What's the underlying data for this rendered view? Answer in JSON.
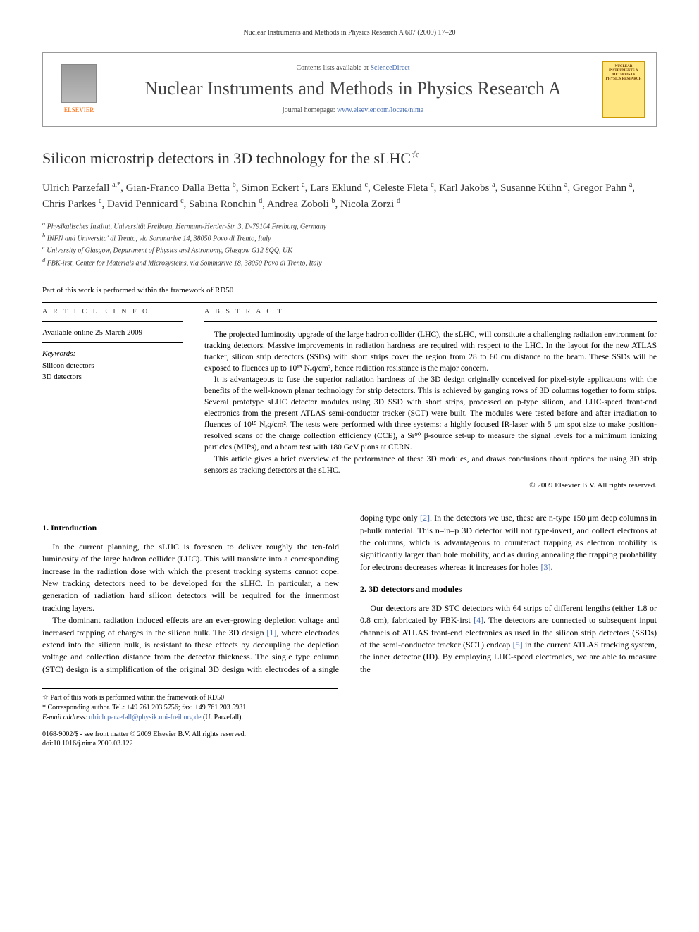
{
  "running_head": "Nuclear Instruments and Methods in Physics Research A 607 (2009) 17–20",
  "journal_box": {
    "publisher": "ELSEVIER",
    "contents_prefix": "Contents lists available at ",
    "contents_link": "ScienceDirect",
    "journal_title": "Nuclear Instruments and Methods in Physics Research A",
    "homepage_prefix": "journal homepage: ",
    "homepage_url": "www.elsevier.com/locate/nima",
    "cover_text": "NUCLEAR INSTRUMENTS & METHODS IN PHYSICS RESEARCH"
  },
  "article": {
    "title": "Silicon microstrip detectors in 3D technology for the sLHC",
    "star": "☆",
    "authors_html": "Ulrich Parzefall <sup>a,*</sup>, Gian-Franco Dalla Betta <sup>b</sup>, Simon Eckert <sup>a</sup>, Lars Eklund <sup>c</sup>, Celeste Fleta <sup>c</sup>, Karl Jakobs <sup>a</sup>, Susanne Kühn <sup>a</sup>, Gregor Pahn <sup>a</sup>, Chris Parkes <sup>c</sup>, David Pennicard <sup>c</sup>, Sabina Ronchin <sup>d</sup>, Andrea Zoboli <sup>b</sup>, Nicola Zorzi <sup>d</sup>",
    "affiliations": {
      "a": "Physikalisches Institut, Universität Freiburg, Hermann-Herder-Str. 3, D-79104 Freiburg, Germany",
      "b": "INFN and Universita' di Trento, via Sommarive 14, 38050 Povo di Trento, Italy",
      "c": "University of Glasgow, Department of Physics and Astronomy, Glasgow G12 8QQ, UK",
      "d": "FBK-irst, Center for Materials and Microsystems, via Sommarive 18, 38050 Povo di Trento, Italy"
    },
    "rd50": "Part of this work is performed within the framework of RD50"
  },
  "info": {
    "heading": "A R T I C L E  I N F O",
    "online": "Available online 25 March 2009",
    "keywords_label": "Keywords:",
    "keywords": [
      "Silicon detectors",
      "3D detectors"
    ]
  },
  "abstract": {
    "heading": "A B S T R A C T",
    "p1": "The projected luminosity upgrade of the large hadron collider (LHC), the sLHC, will constitute a challenging radiation environment for tracking detectors. Massive improvements in radiation hardness are required with respect to the LHC. In the layout for the new ATLAS tracker, silicon strip detectors (SSDs) with short strips cover the region from 28 to 60 cm distance to the beam. These SSDs will be exposed to fluences up to 10¹⁵ Nₑq/cm², hence radiation resistance is the major concern.",
    "p2": "It is advantageous to fuse the superior radiation hardness of the 3D design originally conceived for pixel-style applications with the benefits of the well-known planar technology for strip detectors. This is achieved by ganging rows of 3D columns together to form strips. Several prototype sLHC detector modules using 3D SSD with short strips, processed on p-type silicon, and LHC-speed front-end electronics from the present ATLAS semi-conductor tracker (SCT) were built. The modules were tested before and after irradiation to fluences of 10¹⁵ Nₑq/cm². The tests were performed with three systems: a highly focused IR-laser with 5 μm spot size to make position-resolved scans of the charge collection efficiency (CCE), a Sr⁹⁰ β-source set-up to measure the signal levels for a minimum ionizing particles (MIPs), and a beam test with 180 GeV pions at CERN.",
    "p3": "This article gives a brief overview of the performance of these 3D modules, and draws conclusions about options for using 3D strip sensors as tracking detectors at the sLHC.",
    "copyright": "© 2009 Elsevier B.V. All rights reserved."
  },
  "sections": {
    "s1": {
      "heading": "1. Introduction",
      "p1": "In the current planning, the sLHC is foreseen to deliver roughly the ten-fold luminosity of the large hadron collider (LHC). This will translate into a corresponding increase in the radiation dose with which the present tracking systems cannot cope. New tracking detectors need to be developed for the sLHC. In particular, a new generation of radiation hard silicon detectors will be required for the innermost tracking layers.",
      "p2a": "The dominant radiation induced effects are an ever-growing depletion voltage and increased trapping of charges in the silicon bulk. The 3D design ",
      "p2_ref1": "[1]",
      "p2b": ", where electrodes extend into the silicon bulk, is resistant to these effects by decoupling the depletion voltage and collection distance from the detector thickness. The single type column (STC) design is a simplification of the original 3D design with electrodes of a single doping type only ",
      "p2_ref2": "[2]",
      "p2c": ". In the detectors we use, these are n-type 150 μm deep columns in p-bulk material. This n–in–p 3D detector will not type-invert, and collect electrons at the columns, which is advantageous to counteract trapping as electron mobility is significantly larger than hole mobility, and as during annealing the trapping probability for electrons decreases whereas it increases for holes ",
      "p2_ref3": "[3]",
      "p2d": "."
    },
    "s2": {
      "heading": "2. 3D detectors and modules",
      "p1a": "Our detectors are 3D STC detectors with 64 strips of different lengths (either 1.8 or 0.8 cm), fabricated by FBK-irst ",
      "p1_ref4": "[4]",
      "p1b": ". The detectors are connected to subsequent input channels of ATLAS front-end electronics as used in the silicon strip detectors (SSDs) of the semi-conductor tracker (SCT) endcap ",
      "p1_ref5": "[5]",
      "p1c": " in the current ATLAS tracking system, the inner detector (ID). By employing LHC-speed electronics, we are able to measure the"
    }
  },
  "footnotes": {
    "star": "☆ Part of this work is performed within the framework of RD50",
    "corr_label": "* Corresponding author. Tel.: +49 761 203 5756; fax: +49 761 203 5931.",
    "email_label": "E-mail address: ",
    "email": "ulrich.parzefall@physik.uni-freiburg.de",
    "email_suffix": " (U. Parzefall)."
  },
  "doi": {
    "line1": "0168-9002/$ - see front matter © 2009 Elsevier B.V. All rights reserved.",
    "line2": "doi:10.1016/j.nima.2009.03.122"
  },
  "colors": {
    "link": "#4169b0",
    "elsevier": "#ff6600",
    "cover_bg": "#ffe680"
  }
}
